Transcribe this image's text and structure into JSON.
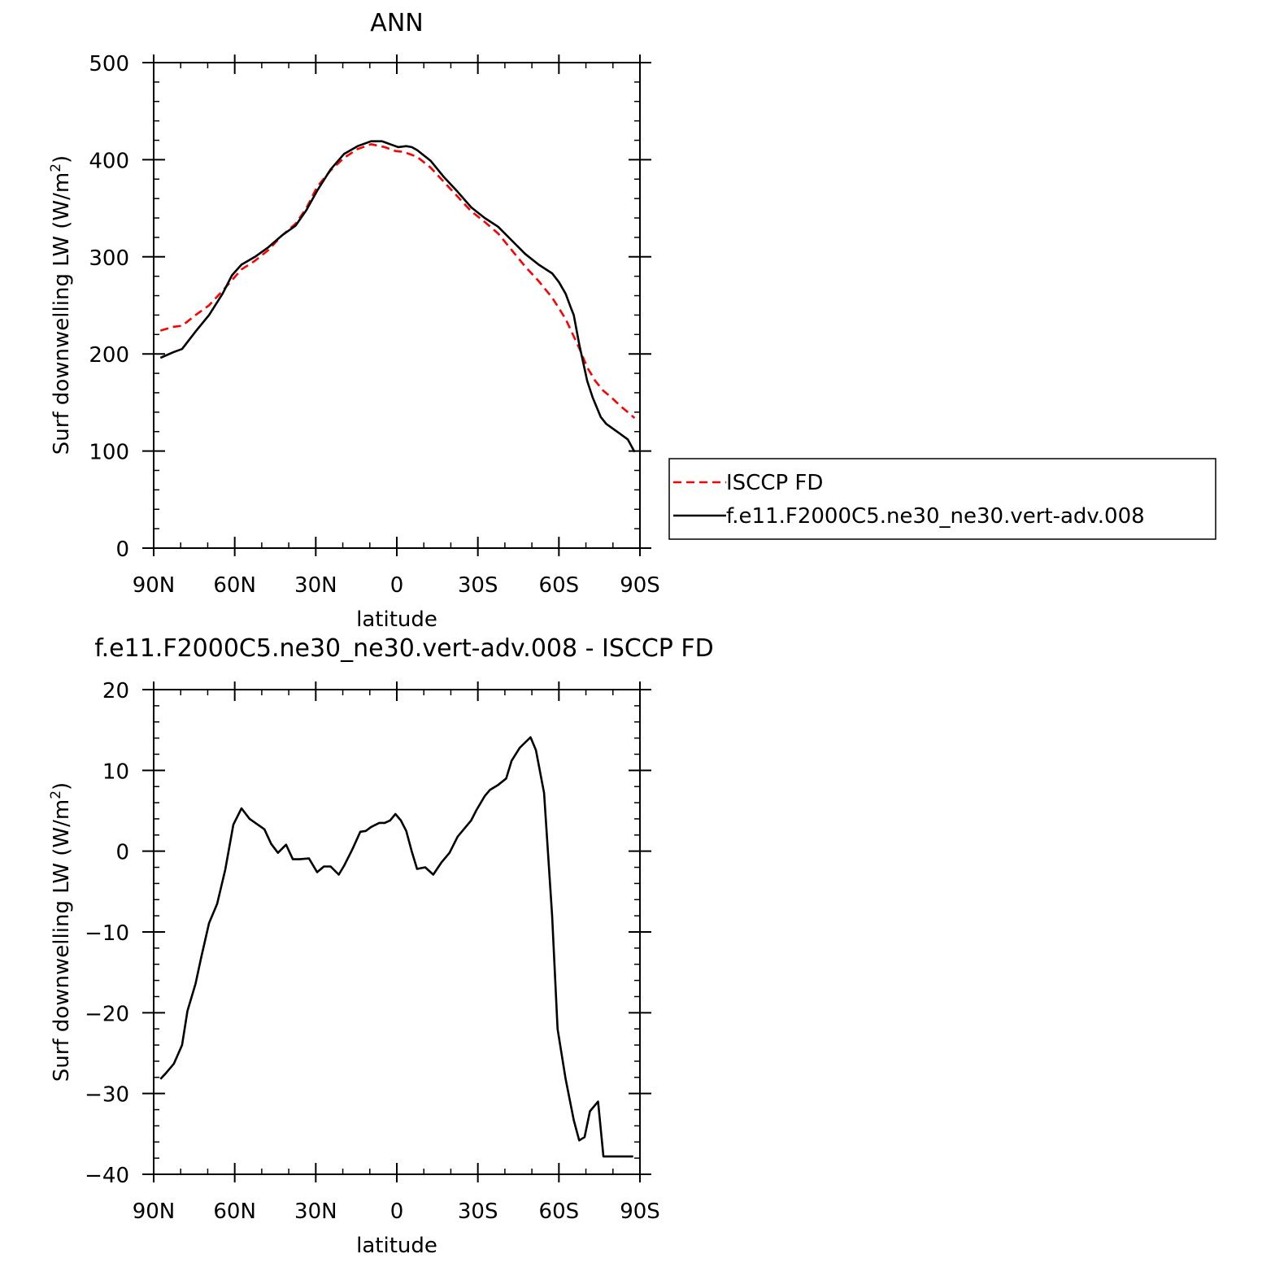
{
  "chart_data": [
    {
      "type": "line",
      "title": "ANN",
      "xlabel": "latitude",
      "ylabel": "Surf downwelling LW (W/m",
      "ylabel_sup": "2",
      "ylabel_close": ")",
      "xlim": [
        90,
        -90
      ],
      "ylim": [
        0,
        500
      ],
      "x_ticks": [
        90,
        60,
        30,
        0,
        -30,
        -60,
        -90
      ],
      "x_tick_labels": [
        "90N",
        "60N",
        "30N",
        "0",
        "30S",
        "60S",
        "90S"
      ],
      "y_ticks": [
        0,
        100,
        200,
        300,
        400,
        500
      ],
      "y_tick_labels": [
        "0",
        "100",
        "200",
        "300",
        "400",
        "500"
      ],
      "legend_position": "right",
      "series": [
        {
          "name": "ISCCP FD",
          "color": "#ff0000",
          "style": "dashed",
          "x": [
            87.5,
            82.5,
            79.5,
            74.5,
            69.5,
            64.5,
            61,
            57.5,
            52.5,
            47.5,
            42.5,
            37.5,
            33.5,
            29.5,
            24.5,
            19.5,
            14.5,
            9.5,
            4.5,
            0.5,
            -2.5,
            -7.5,
            -12.5,
            -17.5,
            -22.5,
            -27.5,
            -32.5,
            -37.5,
            -42.5,
            -47.5,
            -52.5,
            -57.5,
            -62.5,
            -67.5,
            -70.5,
            -73.5,
            -76.5,
            -79.5,
            -82.5,
            -85.5,
            -88
          ],
          "y": [
            224,
            228,
            229,
            240,
            250,
            265,
            276,
            287,
            296,
            307,
            322,
            334,
            350,
            372,
            389,
            402,
            411,
            416,
            413,
            409,
            408,
            403,
            392,
            377,
            362,
            347,
            336,
            324,
            307,
            290,
            275,
            258,
            236,
            206,
            186,
            172,
            162,
            155,
            147,
            140,
            134
          ]
        },
        {
          "name": "f.e11.F2000C5.ne30_ne30.vert-adv.008",
          "color": "#000000",
          "style": "solid",
          "x": [
            87.5,
            82.5,
            79.5,
            74.5,
            69.5,
            64.5,
            61,
            57.5,
            52.5,
            47.5,
            42.5,
            37.5,
            33.5,
            29.5,
            24.5,
            19.5,
            14.5,
            9.5,
            5.5,
            4.5,
            2.5,
            0.5,
            -0.5,
            -3.5,
            -5.5,
            -7.5,
            -12.5,
            -17.5,
            -22.5,
            -27.5,
            -32.5,
            -37.5,
            -42.5,
            -47.5,
            -52.5,
            -57.5,
            -60,
            -62.5,
            -64.5,
            -65.5,
            -67.5,
            -70.5,
            -72.5,
            -75.5,
            -77.5,
            -80.5,
            -82.5,
            -85.5,
            -88
          ],
          "y": [
            196,
            202,
            205,
            223,
            240,
            262,
            281,
            292,
            300,
            310,
            322,
            332,
            348,
            368,
            390,
            406,
            414,
            419,
            419,
            418,
            416,
            414,
            413,
            414,
            413,
            410,
            399,
            382,
            367,
            351,
            340,
            331,
            317,
            303,
            292,
            283,
            274,
            262,
            247,
            240,
            210,
            172,
            155,
            135,
            128,
            122,
            118,
            112,
            99
          ]
        }
      ]
    },
    {
      "type": "line",
      "title": "f.e11.F2000C5.ne30_ne30.vert-adv.008 - ISCCP FD",
      "xlabel": "latitude",
      "ylabel": "Surf downwelling LW (W/m",
      "ylabel_sup": "2",
      "ylabel_close": ")",
      "xlim": [
        90,
        -90
      ],
      "ylim": [
        -40,
        20
      ],
      "x_ticks": [
        90,
        60,
        30,
        0,
        -30,
        -60,
        -90
      ],
      "x_tick_labels": [
        "90N",
        "60N",
        "30N",
        "0",
        "30S",
        "60S",
        "90S"
      ],
      "y_ticks": [
        -40,
        -30,
        -20,
        -10,
        0,
        10,
        20
      ],
      "y_tick_labels": [
        "−40",
        "−30",
        "−20",
        "−10",
        "0",
        "10",
        "20"
      ],
      "series": [
        {
          "color": "#000000",
          "style": "solid",
          "x": [
            87.5,
            85.5,
            82.5,
            79.5,
            77.5,
            74.5,
            72.5,
            69.5,
            66.5,
            63.5,
            60.5,
            57.5,
            54.5,
            51.5,
            49,
            46.5,
            44,
            41,
            38.5,
            36,
            32.5,
            29.5,
            27,
            24.5,
            21.5,
            19.5,
            16.5,
            13.5,
            11.5,
            9.5,
            6.5,
            4.5,
            2.5,
            0.5,
            -1.5,
            -3.5,
            -5.5,
            -7.5,
            -10.5,
            -13.5,
            -16.5,
            -19.5,
            -22.5,
            -25.5,
            -27.5,
            -29.5,
            -32.5,
            -34.5,
            -37.5,
            -40.5,
            -42.5,
            -45.5,
            -49.5,
            -51.5,
            -54.5,
            -57.5,
            -59.5,
            -62.5,
            -65.5,
            -67.5,
            -69.5,
            -71.5,
            -74.5,
            -76.5,
            -79.5,
            -82.5,
            -84.5,
            -87.5
          ],
          "y": [
            -28.2,
            -27.5,
            -26.3,
            -24,
            -19.8,
            -16.4,
            -13.3,
            -8.9,
            -6.5,
            -2.3,
            3.3,
            5.3,
            4,
            3.3,
            2.7,
            0.9,
            -0.2,
            0.8,
            -1,
            -1,
            -0.9,
            -2.6,
            -1.9,
            -1.9,
            -2.9,
            -1.8,
            0.2,
            2.4,
            2.5,
            3,
            3.5,
            3.5,
            3.8,
            4.6,
            3.8,
            2.5,
            0,
            -2.2,
            -2,
            -2.9,
            -1.4,
            -0.2,
            1.8,
            3,
            3.8,
            5.1,
            6.8,
            7.6,
            8.2,
            9,
            11.2,
            12.8,
            14.1,
            12.5,
            7.2,
            -8,
            -22,
            -28.2,
            -33.3,
            -35.8,
            -35.4,
            -32.2,
            -31,
            -37.8,
            -37.8,
            -37.8,
            -37.8,
            -37.8
          ]
        }
      ]
    }
  ]
}
